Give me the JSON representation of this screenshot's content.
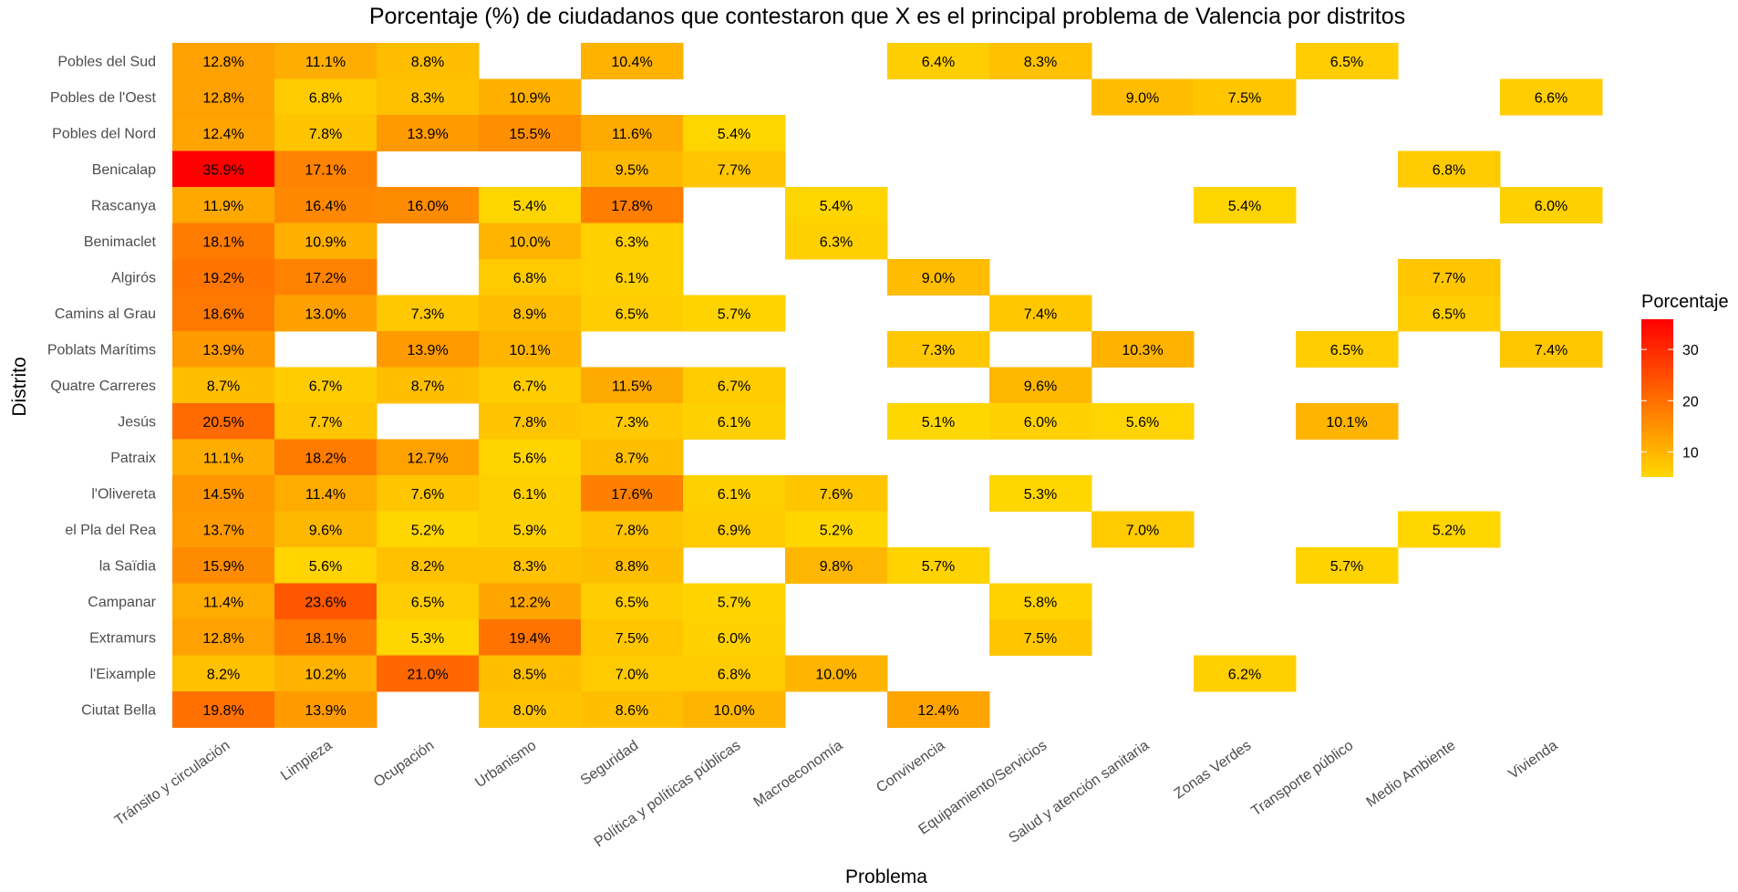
{
  "chart_data": {
    "type": "heatmap",
    "title": "Porcentaje (%) de ciudadanos que contestaron que X es el principal problema de Valencia por distritos",
    "xlabel": "Problema",
    "ylabel": "Distrito",
    "x_categories": [
      "Tránsito y circulación",
      "Limpieza",
      "Ocupación",
      "Urbanismo",
      "Seguridad",
      "Política y políticas públicas",
      "Macroeconomía",
      "Convivencia",
      "Equipamiento/Servicios",
      "Salud y atención sanitaria",
      "Zonas Verdes",
      "Transporte público",
      "Medio Ambiente",
      "Vivienda"
    ],
    "y_categories": [
      "Pobles del Sud",
      "Pobles de l'Oest",
      "Pobles del Nord",
      "Benicalap",
      "Rascanya",
      "Benimaclet",
      "Algirós",
      "Camins al Grau",
      "Poblats Marítims",
      "Quatre Carreres",
      "Jesús",
      "Patraix",
      "l'Olivereta",
      "el Pla del Rea",
      "la Saïdia",
      "Campanar",
      "Extramurs",
      "l'Eixample",
      "Ciutat Bella"
    ],
    "values": [
      [
        12.8,
        11.1,
        8.8,
        null,
        10.4,
        null,
        null,
        6.4,
        8.3,
        null,
        null,
        6.5,
        null,
        null
      ],
      [
        12.8,
        6.8,
        8.3,
        10.9,
        null,
        null,
        null,
        null,
        null,
        9.0,
        7.5,
        null,
        null,
        6.6
      ],
      [
        12.4,
        7.8,
        13.9,
        15.5,
        11.6,
        5.4,
        null,
        null,
        null,
        null,
        null,
        null,
        null,
        null
      ],
      [
        35.9,
        17.1,
        null,
        null,
        9.5,
        7.7,
        null,
        null,
        null,
        null,
        null,
        null,
        6.8,
        null
      ],
      [
        11.9,
        16.4,
        16.0,
        5.4,
        17.8,
        null,
        5.4,
        null,
        null,
        null,
        5.4,
        null,
        null,
        6.0
      ],
      [
        18.1,
        10.9,
        null,
        10.0,
        6.3,
        null,
        6.3,
        null,
        null,
        null,
        null,
        null,
        null,
        null
      ],
      [
        19.2,
        17.2,
        null,
        6.8,
        6.1,
        null,
        null,
        9.0,
        null,
        null,
        null,
        null,
        7.7,
        null
      ],
      [
        18.6,
        13.0,
        7.3,
        8.9,
        6.5,
        5.7,
        null,
        null,
        7.4,
        null,
        null,
        null,
        6.5,
        null
      ],
      [
        13.9,
        null,
        13.9,
        10.1,
        null,
        null,
        null,
        7.3,
        null,
        10.3,
        null,
        6.5,
        null,
        7.4
      ],
      [
        8.7,
        6.7,
        8.7,
        6.7,
        11.5,
        6.7,
        null,
        null,
        9.6,
        null,
        null,
        null,
        null,
        null
      ],
      [
        20.5,
        7.7,
        null,
        7.8,
        7.3,
        6.1,
        null,
        5.1,
        6.0,
        5.6,
        null,
        10.1,
        null,
        null
      ],
      [
        11.1,
        18.2,
        12.7,
        5.6,
        8.7,
        null,
        null,
        null,
        null,
        null,
        null,
        null,
        null,
        null
      ],
      [
        14.5,
        11.4,
        7.6,
        6.1,
        17.6,
        6.1,
        7.6,
        null,
        5.3,
        null,
        null,
        null,
        null,
        null
      ],
      [
        13.7,
        9.6,
        5.2,
        5.9,
        7.8,
        6.9,
        5.2,
        null,
        null,
        7.0,
        null,
        null,
        5.2,
        null
      ],
      [
        15.9,
        5.6,
        8.2,
        8.3,
        8.8,
        null,
        9.8,
        5.7,
        null,
        null,
        null,
        5.7,
        null,
        null
      ],
      [
        11.4,
        23.6,
        6.5,
        12.2,
        6.5,
        5.7,
        null,
        null,
        5.8,
        null,
        null,
        null,
        null,
        null
      ],
      [
        12.8,
        18.1,
        5.3,
        19.4,
        7.5,
        6.0,
        null,
        null,
        7.5,
        null,
        null,
        null,
        null,
        null
      ],
      [
        8.2,
        10.2,
        21.0,
        8.5,
        7.0,
        6.8,
        10.0,
        null,
        null,
        null,
        6.2,
        null,
        null,
        null
      ],
      [
        19.8,
        13.9,
        null,
        8.0,
        8.6,
        10.0,
        null,
        12.4,
        null,
        null,
        null,
        null,
        null,
        null
      ]
    ],
    "value_format": "percent_1_decimal",
    "color_scale": {
      "low": "#ffd700",
      "high": "#ff0000",
      "domain": [
        5.1,
        35.9
      ]
    },
    "legend": {
      "title": "Porcentaje",
      "ticks": [
        10,
        20,
        30
      ],
      "position": "right"
    },
    "grid": false
  }
}
